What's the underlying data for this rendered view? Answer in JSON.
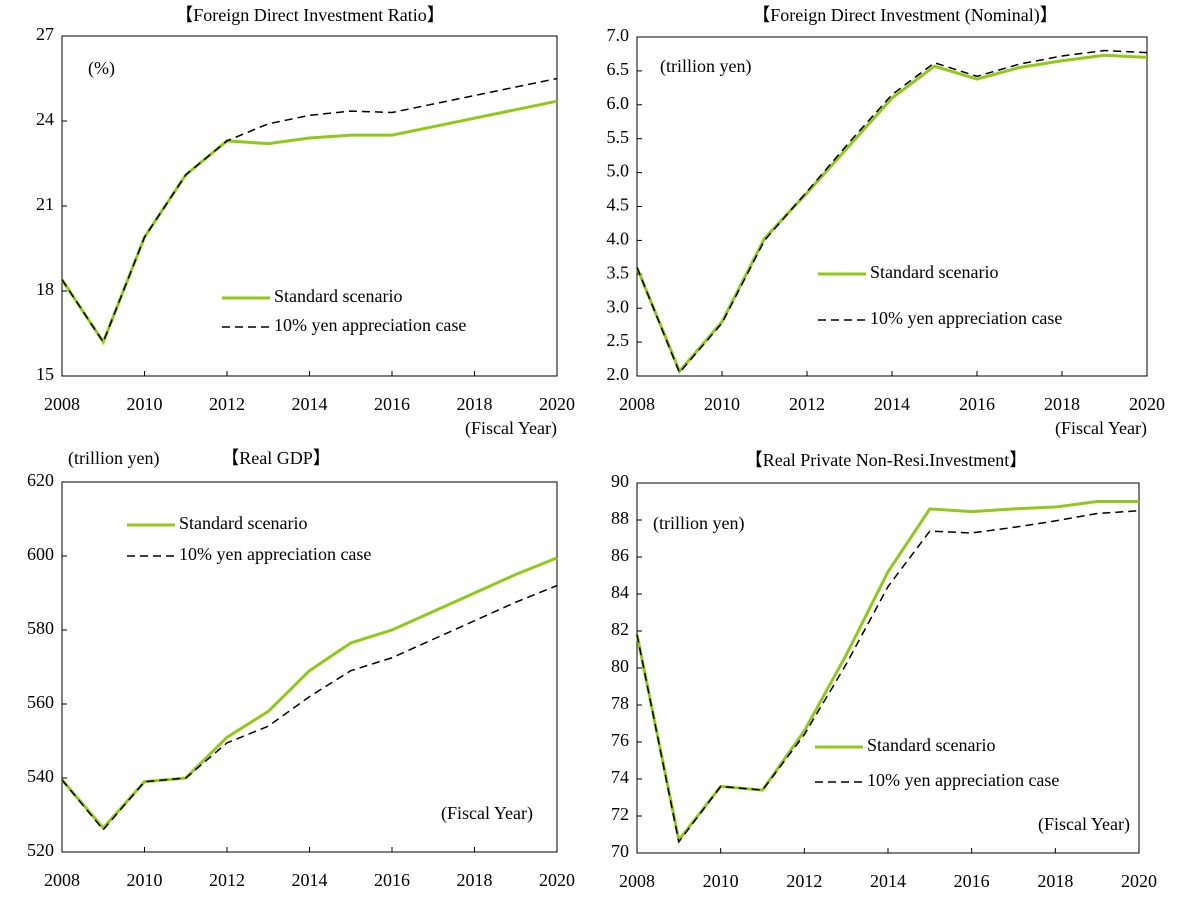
{
  "chart_data": [
    {
      "type": "line",
      "title": "【Foreign Direct Investment Ratio】",
      "annotations": [
        "(%)",
        "(Fiscal Year)"
      ],
      "x": [
        2008,
        2009,
        2010,
        2011,
        2012,
        2013,
        2014,
        2015,
        2016,
        2017,
        2018,
        2019,
        2020
      ],
      "xlim": [
        2008,
        2020
      ],
      "xticks": [
        2008,
        2010,
        2012,
        2014,
        2016,
        2018,
        2020
      ],
      "ylim": [
        15,
        27
      ],
      "yticks": [
        15,
        18,
        21,
        24,
        27
      ],
      "series": [
        {
          "name": "Standard scenario",
          "color": "#92c81a",
          "line_style": "solid",
          "values": [
            18.4,
            16.2,
            19.9,
            22.1,
            23.3,
            23.2,
            23.4,
            23.5,
            23.5,
            23.8,
            24.1,
            24.4,
            24.7
          ]
        },
        {
          "name": "10% yen appreciation case",
          "color": "#000000",
          "line_style": "dashed",
          "values": [
            18.4,
            16.2,
            19.9,
            22.1,
            23.3,
            23.9,
            24.2,
            24.35,
            24.3,
            24.6,
            24.9,
            25.2,
            25.5
          ]
        }
      ]
    },
    {
      "type": "line",
      "title": "【Foreign Direct Investment (Nominal)】",
      "annotations": [
        "(trillion yen)",
        "(Fiscal Year)"
      ],
      "x": [
        2008,
        2009,
        2010,
        2011,
        2012,
        2013,
        2014,
        2015,
        2016,
        2017,
        2018,
        2019,
        2020
      ],
      "xlim": [
        2008,
        2020
      ],
      "xticks": [
        2008,
        2010,
        2012,
        2014,
        2016,
        2018,
        2020
      ],
      "ylim": [
        2,
        7
      ],
      "yticks": [
        {
          "value": 2,
          "label": "2.0"
        },
        2.5,
        {
          "value": 3,
          "label": "3.0"
        },
        3.5,
        {
          "value": 4,
          "label": "4.0"
        },
        4.5,
        {
          "value": 5,
          "label": "5.0"
        },
        5.5,
        {
          "value": 6,
          "label": "6.0"
        },
        6.5,
        {
          "value": 7,
          "label": "7.0"
        }
      ],
      "series": [
        {
          "name": "Standard scenario",
          "color": "#92c81a",
          "line_style": "solid",
          "values": [
            3.6,
            2.07,
            2.8,
            4.03,
            4.7,
            5.4,
            6.1,
            6.57,
            6.38,
            6.55,
            6.65,
            6.73,
            6.7
          ]
        },
        {
          "name": "10% yen appreciation case",
          "color": "#000000",
          "line_style": "dashed",
          "values": [
            3.6,
            2.05,
            2.78,
            4.0,
            4.72,
            5.45,
            6.15,
            6.62,
            6.42,
            6.6,
            6.72,
            6.8,
            6.77
          ]
        }
      ]
    },
    {
      "type": "line",
      "title": "【Real GDP】",
      "annotations": [
        "(trillion yen)",
        "(Fiscal Year)"
      ],
      "x": [
        2008,
        2009,
        2010,
        2011,
        2012,
        2013,
        2014,
        2015,
        2016,
        2017,
        2018,
        2019,
        2020
      ],
      "xlim": [
        2008,
        2020
      ],
      "xticks": [
        2008,
        2010,
        2012,
        2014,
        2016,
        2018,
        2020
      ],
      "ylim": [
        520,
        620
      ],
      "yticks": [
        520,
        540,
        560,
        580,
        600,
        620
      ],
      "series": [
        {
          "name": "Standard scenario",
          "color": "#92c81a",
          "line_style": "solid",
          "values": [
            539.5,
            526.5,
            539,
            540,
            551,
            558,
            569,
            576.5,
            580,
            585,
            590,
            595,
            599.5
          ]
        },
        {
          "name": "10% yen appreciation case",
          "color": "#000000",
          "line_style": "dashed",
          "values": [
            539.5,
            526,
            539,
            540,
            549.5,
            554,
            562,
            569,
            572.5,
            577.5,
            582.5,
            587.5,
            592
          ]
        }
      ]
    },
    {
      "type": "line",
      "title": "【Real Private Non-Resi.Investment】",
      "annotations": [
        "(trillion yen)",
        "(Fiscal Year)"
      ],
      "x": [
        2008,
        2009,
        2010,
        2011,
        2012,
        2013,
        2014,
        2015,
        2016,
        2017,
        2018,
        2019,
        2020
      ],
      "xlim": [
        2008,
        2020
      ],
      "xticks": [
        2008,
        2010,
        2012,
        2014,
        2016,
        2018,
        2020
      ],
      "ylim": [
        70,
        90
      ],
      "yticks": [
        70,
        72,
        74,
        76,
        78,
        80,
        82,
        84,
        86,
        88,
        90
      ],
      "series": [
        {
          "name": "Standard scenario",
          "color": "#92c81a",
          "line_style": "solid",
          "values": [
            81.8,
            70.7,
            73.6,
            73.4,
            76.6,
            80.7,
            85.2,
            88.6,
            88.45,
            88.6,
            88.7,
            89.0,
            89.0
          ]
        },
        {
          "name": "10% yen appreciation case",
          "color": "#000000",
          "line_style": "dashed",
          "values": [
            81.8,
            70.6,
            73.6,
            73.4,
            76.4,
            80.2,
            84.4,
            87.4,
            87.3,
            87.6,
            87.95,
            88.35,
            88.5
          ]
        }
      ]
    }
  ]
}
